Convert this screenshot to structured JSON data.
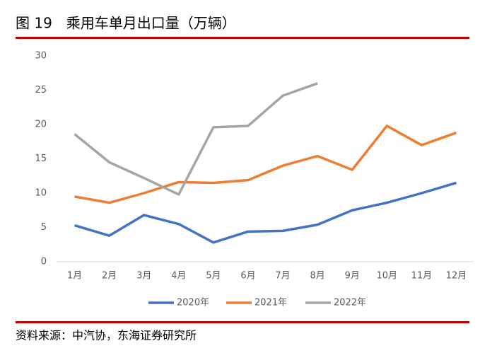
{
  "chart_data": {
    "type": "line",
    "title": "图 19　乘用车单月出口量（万辆）",
    "source": "资料来源：中汽协，东海证券研究所",
    "categories": [
      "1月",
      "2月",
      "3月",
      "4月",
      "5月",
      "6月",
      "7月",
      "8月",
      "9月",
      "10月",
      "11月",
      "12月"
    ],
    "series": [
      {
        "name": "2020年",
        "color": "#4472c4",
        "values": [
          5.3,
          3.8,
          6.8,
          5.5,
          2.8,
          4.4,
          4.5,
          5.4,
          7.5,
          8.6,
          10.0,
          11.5
        ]
      },
      {
        "name": "2021年",
        "color": "#ed7d31",
        "values": [
          9.5,
          8.6,
          10.0,
          11.6,
          11.5,
          11.9,
          14.0,
          15.4,
          13.4,
          19.8,
          17.0,
          18.8
        ]
      },
      {
        "name": "2022年",
        "color": "#a5a5a5",
        "values": [
          18.6,
          14.5,
          12.2,
          9.8,
          19.6,
          19.8,
          24.2,
          26.0,
          null,
          null,
          null,
          null
        ]
      }
    ],
    "ylim": [
      0,
      30
    ],
    "yticks": [
      0,
      5,
      10,
      15,
      20,
      25,
      30
    ],
    "grid": false,
    "legend": "bottom"
  }
}
